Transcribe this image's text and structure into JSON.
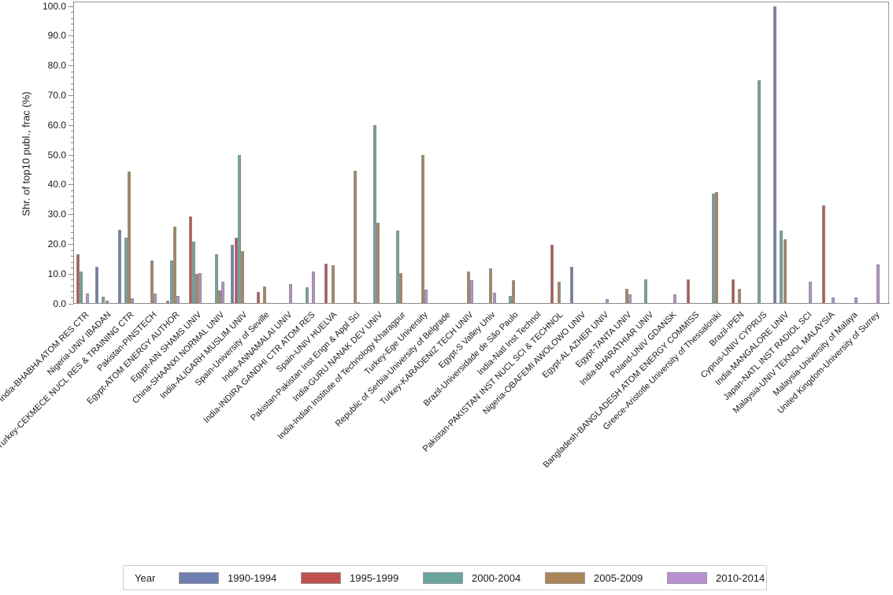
{
  "chart_data": {
    "type": "bar",
    "title": "",
    "xlabel": "",
    "ylabel": "Shr. of top10 publ., frac (%)",
    "ylim": [
      0,
      100
    ],
    "ytick_step": 10,
    "ytick_minor_step": 2,
    "ytick_format_suffix": ".0",
    "grid": false,
    "legend_position": "bottom",
    "legend_title": "Year",
    "categories": [
      "India-BHABHA ATOM RES CTR",
      "Nigeria-UNIV IBADAN",
      "Turkey-CEKMECE NUCL RES & TRAINING CTR",
      "Pakistan-PINSTECH",
      "Egypt-ATOM ENERGY AUTHOR",
      "Egypt-AIN SHAMS UNIV",
      "China-SHAANXI NORMAL UNIV",
      "India-ALIGARH MUSLIM UNIV",
      "Spain-University of Seville",
      "India-ANNAMALAI UNIV",
      "India-INDIRA GANDHI CTR ATOM RES",
      "Spain-UNIV HUELVA",
      "Pakistan-Pakistan Inst Engn & Appl Sci",
      "India-GURU NANAK DEV UNIV",
      "India-Indian Institute of Technology Kharagpur",
      "Turkey-Ege University",
      "Republic of Serbia-University of Belgrade",
      "Turkey-KARADENIZ TECH UNIV",
      "Egypt-S Valley Univ",
      "Brazil-Universidade de São Paulo",
      "India-Natl Inst Technol",
      "Pakistan-PAKISTAN INST NUCL SCI & TECHNOL",
      "Nigeria-OBAFEMI AWOLOWO UNIV",
      "Egypt-AL AZHER UNIV",
      "Egypt-TANTA UNIV",
      "India-BHARATHIAR UNIV",
      "Poland-UNIV GDANSK",
      "Bangladesh-BANGLADESH ATOM ENERGY COMMISS",
      "Greece-Aristotle University of Thessaloniki",
      "Brazil-IPEN",
      "Cyprus-UNIV CYPRUS",
      "India-MANGALORE UNIV",
      "Japan-NATL INST RADIOL SCI",
      "Malaysia-UNIV TEKNOL MALAYSIA",
      "Malaysia-University of Malaya",
      "United Kingdom-University of Surrey"
    ],
    "series": [
      {
        "name": "1990-1994",
        "color": "#6e7fb1",
        "values": [
          null,
          12.3,
          24.8,
          null,
          null,
          null,
          null,
          19.7,
          null,
          null,
          null,
          null,
          null,
          null,
          null,
          null,
          null,
          null,
          null,
          null,
          null,
          null,
          12.4,
          null,
          null,
          null,
          null,
          null,
          null,
          null,
          null,
          100.0,
          null,
          null,
          null,
          null
        ]
      },
      {
        "name": "1995-1999",
        "color": "#c15151",
        "values": [
          16.5,
          null,
          null,
          null,
          0.9,
          29.2,
          null,
          22.0,
          3.9,
          null,
          null,
          13.5,
          null,
          null,
          null,
          null,
          null,
          null,
          null,
          null,
          null,
          19.7,
          null,
          null,
          null,
          null,
          null,
          8.1,
          null,
          8.1,
          null,
          null,
          null,
          33.0,
          null,
          null
        ]
      },
      {
        "name": "2000-2004",
        "color": "#69a6a0",
        "values": [
          10.8,
          2.3,
          22.0,
          null,
          14.3,
          20.7,
          16.5,
          50.0,
          null,
          null,
          5.5,
          null,
          null,
          60.0,
          24.6,
          null,
          null,
          null,
          null,
          2.4,
          null,
          null,
          null,
          null,
          null,
          8.1,
          null,
          null,
          36.8,
          null,
          75.0,
          24.5,
          null,
          null,
          null,
          null
        ]
      },
      {
        "name": "2005-2009",
        "color": "#aa8557",
        "values": [
          null,
          0.9,
          44.2,
          14.3,
          25.7,
          9.9,
          4.3,
          17.7,
          5.8,
          null,
          null,
          12.9,
          44.7,
          27.0,
          10.3,
          50.0,
          null,
          10.6,
          11.8,
          7.7,
          null,
          7.3,
          null,
          null,
          4.8,
          null,
          null,
          null,
          37.5,
          4.8,
          null,
          21.5,
          null,
          null,
          null,
          null
        ]
      },
      {
        "name": "2010-2014",
        "color": "#b890d3",
        "values": [
          3.3,
          null,
          1.8,
          3.4,
          2.4,
          10.3,
          7.3,
          null,
          null,
          6.6,
          10.8,
          null,
          0.4,
          null,
          null,
          4.7,
          null,
          7.8,
          3.6,
          null,
          null,
          null,
          null,
          1.6,
          3.0,
          null,
          3.0,
          null,
          null,
          null,
          null,
          null,
          7.2,
          1.9,
          2.1,
          13.2
        ]
      }
    ]
  }
}
